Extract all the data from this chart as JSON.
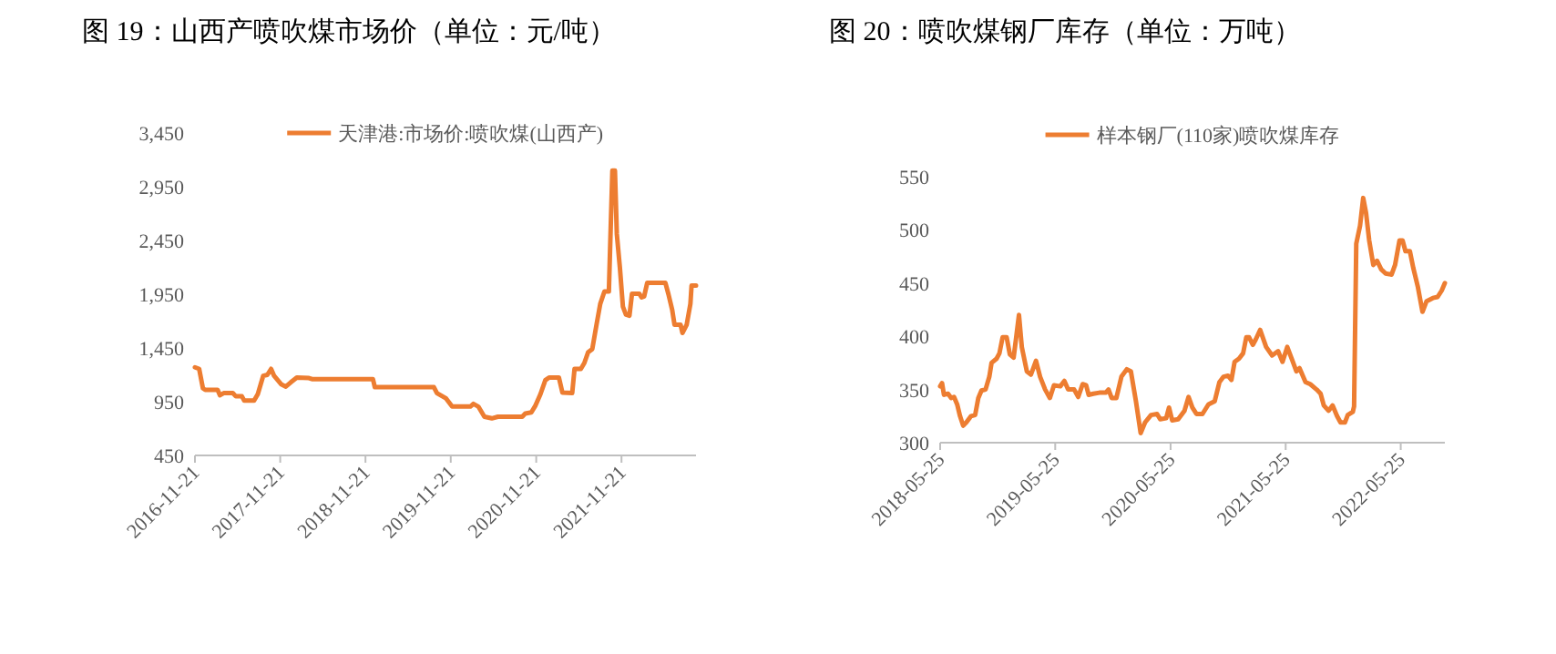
{
  "chart_data": [
    {
      "type": "line",
      "title": "图 19：山西产喷吹煤市场价（单位：元/吨）",
      "legend": "top",
      "marker": "none",
      "line_style": "solid",
      "grid": false,
      "xlim": [
        "2016-11-21",
        "2022-10-06"
      ],
      "xticks": [
        "2016-11-21",
        "2017-11-21",
        "2018-11-21",
        "2019-11-21",
        "2020-11-21",
        "2021-11-21"
      ],
      "ylim": [
        450,
        3450
      ],
      "yticks": [
        450,
        950,
        {
          "value": 1450,
          "label": "1,450"
        },
        {
          "value": 1950,
          "label": "1,950"
        },
        {
          "value": 2450,
          "label": "2,450"
        },
        {
          "value": 2950,
          "label": "2,950"
        },
        {
          "value": 3450,
          "label": "3,450"
        }
      ],
      "series": [
        {
          "name": "天津港:市场价:喷吹煤(山西产)",
          "color": "#ed7d31",
          "x": [
            "2016-11-21",
            "2016-12-09",
            "2016-12-25",
            "2017-01-04",
            "2017-02-26",
            "2017-03-08",
            "2017-03-24",
            "2017-05-02",
            "2017-05-15",
            "2017-06-10",
            "2017-06-20",
            "2017-08-01",
            "2017-08-17",
            "2017-09-09",
            "2017-09-27",
            "2017-10-13",
            "2017-10-26",
            "2017-11-26",
            "2017-12-15",
            "2018-01-05",
            "2018-01-31",
            "2018-03-24",
            "2018-04-06",
            "2018-12-23",
            "2018-12-31",
            "2019-09-10",
            "2019-09-23",
            "2019-11-01",
            "2019-11-27",
            "2020-02-13",
            "2020-02-26",
            "2020-03-18",
            "2020-04-13",
            "2020-05-15",
            "2020-06-10",
            "2020-09-22",
            "2020-10-05",
            "2020-10-31",
            "2020-11-18",
            "2020-12-09",
            "2020-12-30",
            "2021-01-15",
            "2021-02-26",
            "2021-03-13",
            "2021-04-24",
            "2021-05-04",
            "2021-05-31",
            "2021-06-15",
            "2021-07-01",
            "2021-07-19",
            "2021-08-06",
            "2021-08-22",
            "2021-09-09",
            "2021-09-28",
            "2021-10-05",
            "2021-10-13",
            "2021-10-24",
            "2021-11-01",
            "2021-11-14",
            "2021-11-27",
            "2021-12-10",
            "2021-12-25",
            "2022-01-05",
            "2022-02-05",
            "2022-02-15",
            "2022-02-26",
            "2022-03-11",
            "2022-05-28",
            "2022-06-10",
            "2022-06-26",
            "2022-07-06",
            "2022-08-01",
            "2022-08-09",
            "2022-08-27",
            "2022-09-12",
            "2022-09-17",
            "2022-10-06"
          ],
          "values": [
            1270,
            1255,
            1075,
            1060,
            1060,
            1010,
            1030,
            1030,
            1000,
            1000,
            960,
            960,
            1020,
            1190,
            1200,
            1255,
            1190,
            1110,
            1090,
            1130,
            1175,
            1170,
            1160,
            1160,
            1085,
            1085,
            1030,
            980,
            905,
            905,
            930,
            905,
            810,
            795,
            810,
            810,
            840,
            850,
            915,
            1020,
            1150,
            1175,
            1175,
            1035,
            1030,
            1255,
            1255,
            1310,
            1410,
            1440,
            1665,
            1860,
            1975,
            1975,
            2510,
            3100,
            3100,
            2510,
            2200,
            1835,
            1760,
            1750,
            1955,
            1955,
            1920,
            1930,
            2055,
            2055,
            1950,
            1805,
            1665,
            1665,
            1590,
            1665,
            1860,
            2030,
            2030
          ]
        }
      ]
    },
    {
      "type": "line",
      "title": "图 20：喷吹煤钢厂库存（单位：万吨）",
      "legend": "top",
      "marker": "none",
      "line_style": "solid",
      "grid": false,
      "xlim": [
        "2018-05-25",
        "2022-10-12"
      ],
      "xticks": [
        "2018-05-25",
        "2019-05-25",
        "2020-05-25",
        "2021-05-25",
        "2022-05-25"
      ],
      "ylim": [
        300,
        550
      ],
      "yticks": [
        300,
        350,
        400,
        450,
        500,
        550
      ],
      "series": [
        {
          "name": "样本钢厂(110家)喷吹煤库存",
          "color": "#ed7d31",
          "x": [
            "2018-05-25",
            "2018-05-31",
            "2018-06-06",
            "2018-06-19",
            "2018-06-29",
            "2018-07-08",
            "2018-07-18",
            "2018-07-27",
            "2018-08-06",
            "2018-08-16",
            "2018-08-31",
            "2018-09-13",
            "2018-09-23",
            "2018-10-03",
            "2018-10-16",
            "2018-10-28",
            "2018-11-04",
            "2018-11-20",
            "2018-11-29",
            "2018-12-09",
            "2018-12-22",
            "2019-01-01",
            "2019-01-13",
            "2019-01-20",
            "2019-01-30",
            "2019-02-08",
            "2019-02-24",
            "2019-03-09",
            "2019-03-25",
            "2019-04-07",
            "2019-04-23",
            "2019-05-08",
            "2019-05-21",
            "2019-06-10",
            "2019-06-23",
            "2019-07-05",
            "2019-07-24",
            "2019-08-06",
            "2019-08-20",
            "2019-08-31",
            "2019-09-08",
            "2019-09-23",
            "2019-10-12",
            "2019-11-01",
            "2019-11-10",
            "2019-11-20",
            "2019-12-05",
            "2019-12-21",
            "2020-01-07",
            "2020-01-20",
            "2020-02-05",
            "2020-02-20",
            "2020-03-05",
            "2020-03-24",
            "2020-04-12",
            "2020-04-22",
            "2020-05-11",
            "2020-05-20",
            "2020-05-30",
            "2020-06-18",
            "2020-07-08",
            "2020-07-21",
            "2020-08-02",
            "2020-08-15",
            "2020-09-03",
            "2020-09-22",
            "2020-10-12",
            "2020-10-27",
            "2020-11-09",
            "2020-11-23",
            "2020-12-04",
            "2020-12-14",
            "2020-12-28",
            "2021-01-10",
            "2021-01-20",
            "2021-01-29",
            "2021-02-10",
            "2021-02-19",
            "2021-03-05",
            "2021-03-24",
            "2021-04-12",
            "2021-05-01",
            "2021-05-15",
            "2021-05-30",
            "2021-06-13",
            "2021-06-28",
            "2021-07-08",
            "2021-07-27",
            "2021-08-11",
            "2021-08-31",
            "2021-09-13",
            "2021-09-23",
            "2021-10-08",
            "2021-10-21",
            "2021-11-04",
            "2021-11-15",
            "2021-11-29",
            "2021-12-08",
            "2021-12-24",
            "2021-12-28",
            "2022-01-04",
            "2022-01-16",
            "2022-01-26",
            "2022-02-04",
            "2022-02-14",
            "2022-02-27",
            "2022-03-11",
            "2022-03-24",
            "2022-04-07",
            "2022-04-26",
            "2022-05-07",
            "2022-05-21",
            "2022-05-31",
            "2022-06-09",
            "2022-06-23",
            "2022-07-04",
            "2022-07-18",
            "2022-08-02",
            "2022-08-15",
            "2022-09-04",
            "2022-09-19",
            "2022-10-02",
            "2022-10-12"
          ],
          "values": [
            353,
            356,
            345,
            346,
            342,
            343,
            336,
            325,
            316,
            319,
            325,
            326,
            342,
            349,
            350,
            362,
            375,
            379,
            384,
            399,
            399,
            383,
            380,
            396,
            420,
            390,
            367,
            364,
            377,
            362,
            350,
            342,
            354,
            353,
            358,
            350,
            350,
            343,
            355,
            354,
            345,
            346,
            347,
            347,
            350,
            342,
            342,
            362,
            369,
            367,
            339,
            309,
            319,
            326,
            327,
            322,
            323,
            333,
            321,
            322,
            330,
            343,
            333,
            327,
            327,
            336,
            339,
            357,
            362,
            363,
            359,
            376,
            379,
            384,
            399,
            399,
            392,
            397,
            406,
            390,
            382,
            386,
            376,
            390,
            379,
            367,
            370,
            357,
            355,
            350,
            346,
            335,
            330,
            335,
            325,
            319,
            319,
            326,
            329,
            334,
            487,
            504,
            530,
            516,
            490,
            467,
            471,
            463,
            459,
            458,
            467,
            490,
            490,
            480,
            480,
            464,
            447,
            423,
            433,
            436,
            437,
            443,
            450
          ]
        }
      ]
    }
  ]
}
